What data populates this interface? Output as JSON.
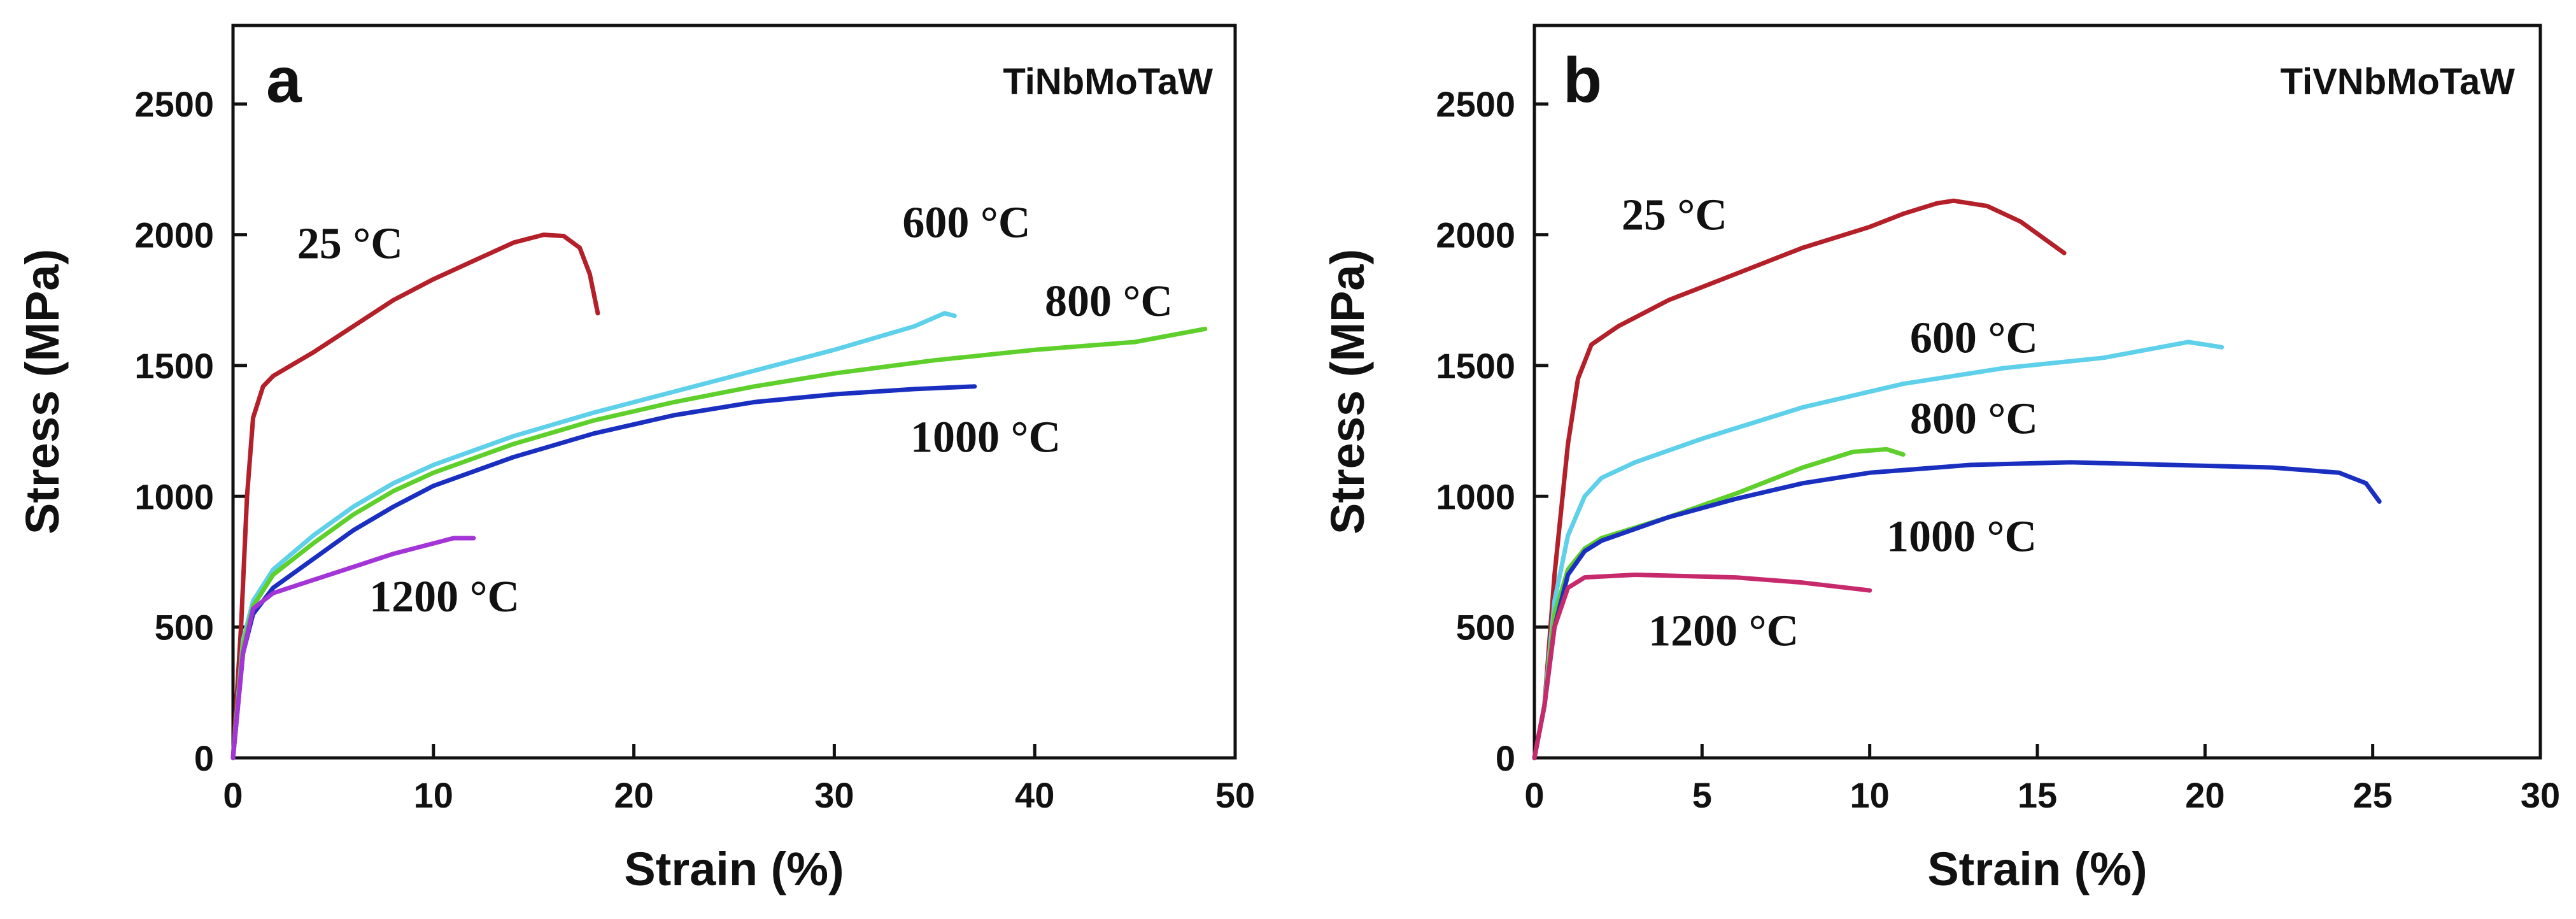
{
  "chart_data": [
    {
      "type": "line",
      "panel": "a",
      "alloy": "TiNbMoTaW",
      "xlabel": "Strain (%)",
      "ylabel": "Stress (MPa)",
      "xlim": [
        0,
        50
      ],
      "ylim": [
        0,
        2800
      ],
      "xticks": [
        "0",
        "10",
        "20",
        "30",
        "40",
        "50"
      ],
      "yticks": [
        "0",
        "500",
        "1000",
        "1500",
        "2000",
        "2500"
      ],
      "series": [
        {
          "name": "25 °C",
          "color": "#b3202a",
          "points": [
            [
              0,
              0
            ],
            [
              0.4,
              500
            ],
            [
              0.7,
              1000
            ],
            [
              1,
              1300
            ],
            [
              1.5,
              1420
            ],
            [
              2,
              1460
            ],
            [
              4,
              1550
            ],
            [
              6,
              1650
            ],
            [
              8,
              1750
            ],
            [
              10,
              1830
            ],
            [
              12,
              1900
            ],
            [
              14,
              1970
            ],
            [
              15.5,
              2000
            ],
            [
              16.5,
              1995
            ],
            [
              17.3,
              1950
            ],
            [
              17.8,
              1850
            ],
            [
              18.2,
              1700
            ]
          ]
        },
        {
          "name": "600 °C",
          "color": "#5fd0ea",
          "points": [
            [
              0,
              0
            ],
            [
              0.5,
              450
            ],
            [
              1,
              600
            ],
            [
              2,
              720
            ],
            [
              4,
              850
            ],
            [
              6,
              960
            ],
            [
              8,
              1050
            ],
            [
              10,
              1120
            ],
            [
              14,
              1230
            ],
            [
              18,
              1320
            ],
            [
              22,
              1400
            ],
            [
              26,
              1480
            ],
            [
              30,
              1560
            ],
            [
              34,
              1650
            ],
            [
              35.5,
              1700
            ],
            [
              36,
              1690
            ]
          ]
        },
        {
          "name": "800 °C",
          "color": "#5fcf2c",
          "points": [
            [
              0,
              0
            ],
            [
              0.5,
              430
            ],
            [
              1,
              580
            ],
            [
              2,
              700
            ],
            [
              4,
              820
            ],
            [
              6,
              930
            ],
            [
              8,
              1020
            ],
            [
              10,
              1090
            ],
            [
              14,
              1200
            ],
            [
              18,
              1290
            ],
            [
              22,
              1360
            ],
            [
              26,
              1420
            ],
            [
              30,
              1470
            ],
            [
              35,
              1520
            ],
            [
              40,
              1560
            ],
            [
              45,
              1590
            ],
            [
              48.5,
              1640
            ]
          ]
        },
        {
          "name": "1000 °C",
          "color": "#1a2fc0",
          "points": [
            [
              0,
              0
            ],
            [
              0.5,
              400
            ],
            [
              1,
              550
            ],
            [
              2,
              650
            ],
            [
              4,
              760
            ],
            [
              6,
              870
            ],
            [
              8,
              960
            ],
            [
              10,
              1040
            ],
            [
              14,
              1150
            ],
            [
              18,
              1240
            ],
            [
              22,
              1310
            ],
            [
              26,
              1360
            ],
            [
              30,
              1390
            ],
            [
              34,
              1410
            ],
            [
              37,
              1420
            ]
          ]
        },
        {
          "name": "1200 °C",
          "color": "#a335d6",
          "points": [
            [
              0,
              0
            ],
            [
              0.5,
              400
            ],
            [
              1,
              570
            ],
            [
              2,
              630
            ],
            [
              4,
              680
            ],
            [
              6,
              730
            ],
            [
              8,
              780
            ],
            [
              10,
              820
            ],
            [
              11,
              840
            ],
            [
              12,
              840
            ]
          ]
        }
      ],
      "labels": [
        {
          "text": "25 °C",
          "x": 3.2,
          "y": 1910
        },
        {
          "text": "600 °C",
          "x": 33.4,
          "y": 1990
        },
        {
          "text": "800 °C",
          "x": 40.5,
          "y": 1690
        },
        {
          "text": "1000 °C",
          "x": 33.8,
          "y": 1170
        },
        {
          "text": "1200 °C",
          "x": 6.8,
          "y": 560
        }
      ]
    },
    {
      "type": "line",
      "panel": "b",
      "alloy": "TiVNbMoTaW",
      "xlabel": "Strain (%)",
      "ylabel": "Stress (MPa)",
      "xlim": [
        0,
        30
      ],
      "ylim": [
        0,
        2800
      ],
      "xticks": [
        "0",
        "5",
        "10",
        "15",
        "20",
        "25",
        "30"
      ],
      "yticks": [
        "0",
        "500",
        "1000",
        "1500",
        "2000",
        "2500"
      ],
      "series": [
        {
          "name": "25 °C",
          "color": "#b3202a",
          "points": [
            [
              0,
              0
            ],
            [
              0.3,
              200
            ],
            [
              0.6,
              700
            ],
            [
              1,
              1200
            ],
            [
              1.3,
              1450
            ],
            [
              1.7,
              1580
            ],
            [
              2.5,
              1650
            ],
            [
              4,
              1750
            ],
            [
              6,
              1850
            ],
            [
              8,
              1950
            ],
            [
              10,
              2030
            ],
            [
              11,
              2080
            ],
            [
              12,
              2120
            ],
            [
              12.5,
              2130
            ],
            [
              13.5,
              2110
            ],
            [
              14.5,
              2050
            ],
            [
              15.8,
              1930
            ]
          ]
        },
        {
          "name": "600 °C",
          "color": "#5fd0ea",
          "points": [
            [
              0,
              0
            ],
            [
              0.3,
              200
            ],
            [
              0.6,
              600
            ],
            [
              1,
              850
            ],
            [
              1.5,
              1000
            ],
            [
              2,
              1070
            ],
            [
              3,
              1130
            ],
            [
              5,
              1220
            ],
            [
              8,
              1340
            ],
            [
              11,
              1430
            ],
            [
              14,
              1490
            ],
            [
              17,
              1530
            ],
            [
              19.5,
              1590
            ],
            [
              20.5,
              1570
            ]
          ]
        },
        {
          "name": "800 °C",
          "color": "#5fcf2c",
          "points": [
            [
              0,
              0
            ],
            [
              0.3,
              200
            ],
            [
              0.6,
              550
            ],
            [
              1,
              720
            ],
            [
              1.5,
              800
            ],
            [
              2,
              840
            ],
            [
              4,
              920
            ],
            [
              6,
              1010
            ],
            [
              8,
              1110
            ],
            [
              9.5,
              1170
            ],
            [
              10.5,
              1180
            ],
            [
              11,
              1160
            ]
          ]
        },
        {
          "name": "1000 °C",
          "color": "#1a2fc0",
          "points": [
            [
              0,
              0
            ],
            [
              0.3,
              200
            ],
            [
              0.6,
              500
            ],
            [
              1,
              700
            ],
            [
              1.5,
              790
            ],
            [
              2,
              830
            ],
            [
              4,
              920
            ],
            [
              6,
              990
            ],
            [
              8,
              1050
            ],
            [
              10,
              1090
            ],
            [
              13,
              1120
            ],
            [
              16,
              1130
            ],
            [
              19,
              1120
            ],
            [
              22,
              1110
            ],
            [
              24,
              1090
            ],
            [
              24.8,
              1050
            ],
            [
              25.2,
              980
            ]
          ]
        },
        {
          "name": "1200 °C",
          "color": "#c62a6d",
          "points": [
            [
              0,
              0
            ],
            [
              0.3,
              200
            ],
            [
              0.6,
              500
            ],
            [
              1,
              650
            ],
            [
              1.5,
              690
            ],
            [
              3,
              700
            ],
            [
              6,
              690
            ],
            [
              8,
              670
            ],
            [
              10,
              640
            ]
          ]
        }
      ],
      "labels": [
        {
          "text": "25 °C",
          "x": 2.6,
          "y": 2020
        },
        {
          "text": "600 °C",
          "x": 11.2,
          "y": 1550
        },
        {
          "text": "800 °C",
          "x": 11.2,
          "y": 1240
        },
        {
          "text": "1000 °C",
          "x": 10.5,
          "y": 790
        },
        {
          "text": "1200 °C",
          "x": 3.4,
          "y": 430
        }
      ]
    }
  ]
}
